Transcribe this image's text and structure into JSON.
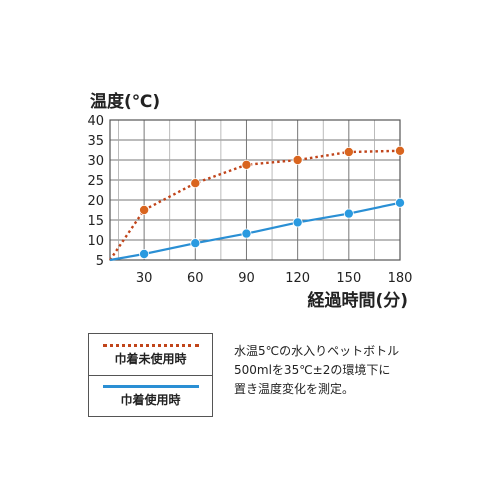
{
  "chart_data": {
    "type": "line",
    "ylabel": "温度(℃)",
    "xlabel": "経過時間(分)",
    "x": [
      10,
      30,
      60,
      90,
      120,
      150,
      180
    ],
    "xticks": [
      "30",
      "60",
      "90",
      "120",
      "150",
      "180"
    ],
    "yticks": [
      "5",
      "10",
      "15",
      "20",
      "25",
      "30",
      "35",
      "40"
    ],
    "xlim": [
      10,
      180
    ],
    "ylim": [
      5,
      40
    ],
    "grid": true,
    "series": [
      {
        "name": "巾着未使用時",
        "style": "dotted",
        "color": "#c0441a",
        "marker_color": "#d9651f",
        "x": [
          10,
          30,
          60,
          90,
          120,
          150,
          180
        ],
        "values": [
          5,
          17.5,
          24.2,
          28.8,
          30,
          32,
          32.3
        ]
      },
      {
        "name": "巾着使用時",
        "style": "solid",
        "color": "#2a8fd4",
        "marker_color": "#2a9ae0",
        "x": [
          10,
          30,
          60,
          90,
          120,
          150,
          180
        ],
        "values": [
          5,
          6.5,
          9.2,
          11.6,
          14.4,
          16.6,
          19.3
        ]
      }
    ]
  },
  "note_lines": [
    "水温5℃の水入りペットボトル",
    "500mlを35℃±2の環境下に",
    "置き温度変化を測定。"
  ]
}
